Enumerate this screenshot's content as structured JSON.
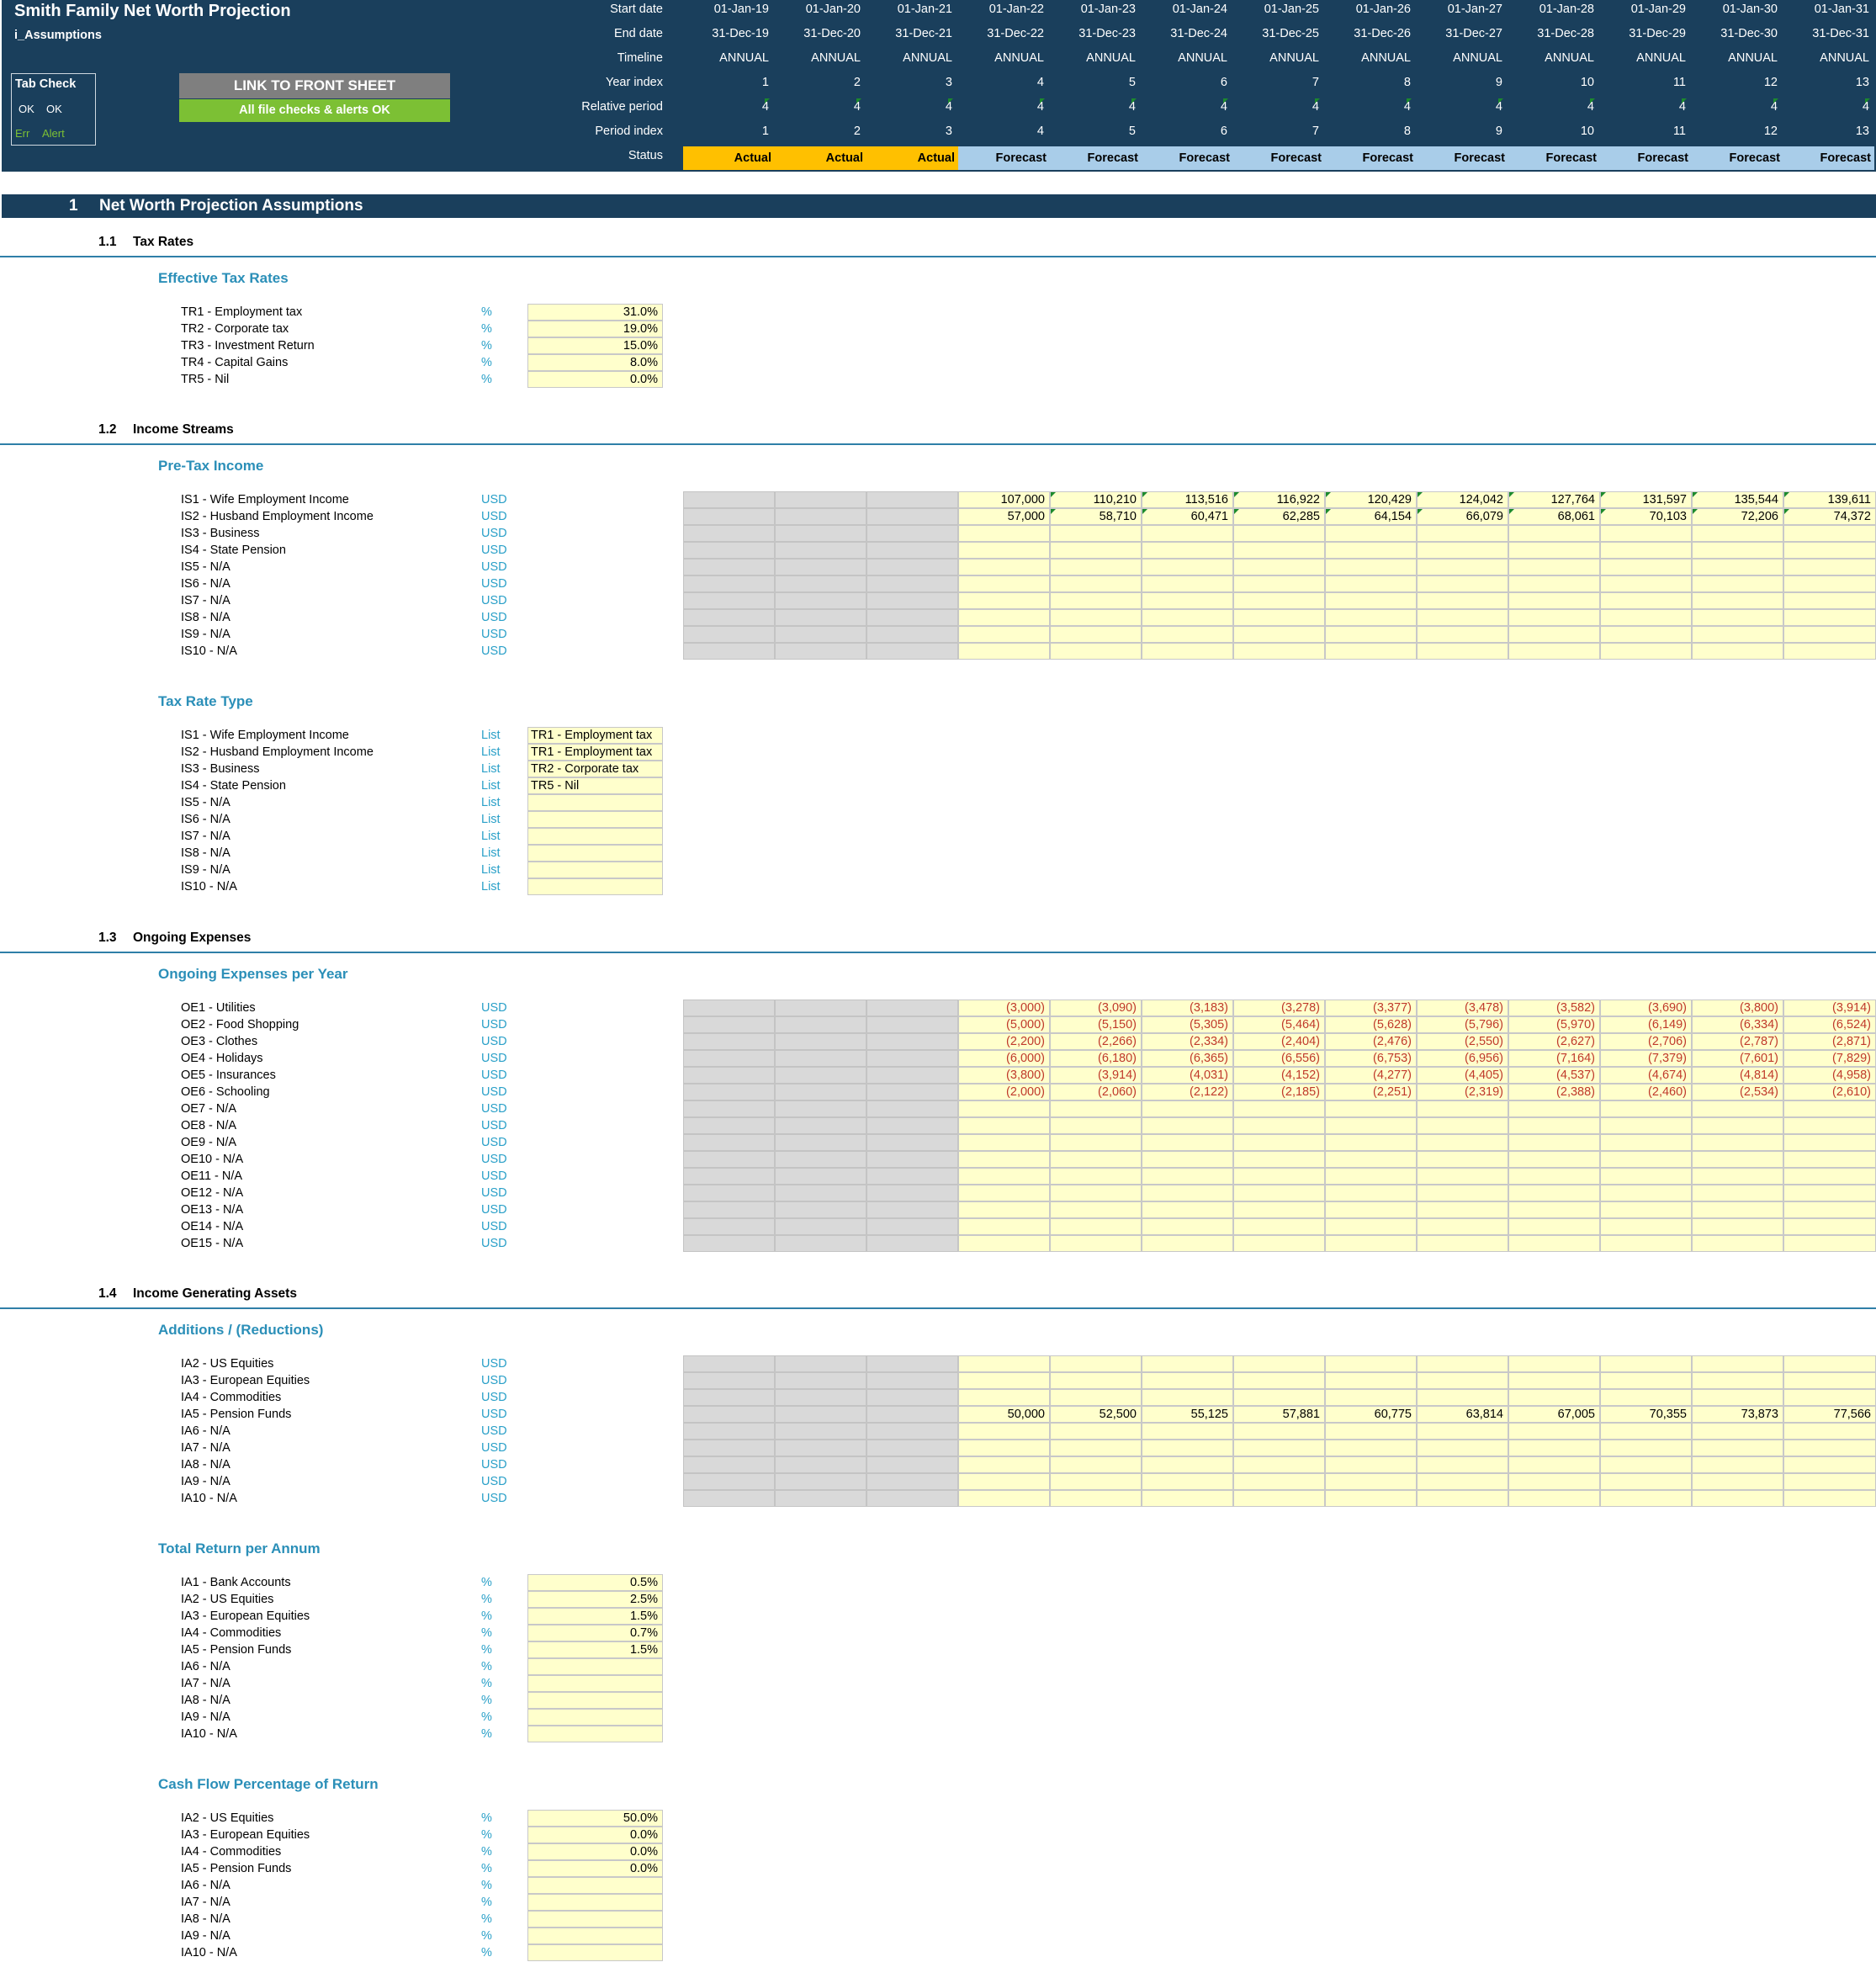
{
  "header": {
    "title": "Smith Family Net Worth Projection",
    "sheet_name": "i_Assumptions",
    "tab_check": {
      "title": "Tab Check",
      "ok1": "OK",
      "ok2": "OK",
      "err": "Err",
      "alert": "Alert"
    },
    "link_button": "LINK TO FRONT SHEET",
    "checks_status": "All file checks & alerts OK",
    "row_labels": {
      "start_date": "Start date",
      "end_date": "End date",
      "timeline": "Timeline",
      "year_index": "Year index",
      "relative_period": "Relative period",
      "period_index": "Period index",
      "status": "Status"
    },
    "start_dates": [
      "01-Jan-19",
      "01-Jan-20",
      "01-Jan-21",
      "01-Jan-22",
      "01-Jan-23",
      "01-Jan-24",
      "01-Jan-25",
      "01-Jan-26",
      "01-Jan-27",
      "01-Jan-28",
      "01-Jan-29",
      "01-Jan-30",
      "01-Jan-31"
    ],
    "end_dates": [
      "31-Dec-19",
      "31-Dec-20",
      "31-Dec-21",
      "31-Dec-22",
      "31-Dec-23",
      "31-Dec-24",
      "31-Dec-25",
      "31-Dec-26",
      "31-Dec-27",
      "31-Dec-28",
      "31-Dec-29",
      "31-Dec-30",
      "31-Dec-31"
    ],
    "timeline": [
      "ANNUAL",
      "ANNUAL",
      "ANNUAL",
      "ANNUAL",
      "ANNUAL",
      "ANNUAL",
      "ANNUAL",
      "ANNUAL",
      "ANNUAL",
      "ANNUAL",
      "ANNUAL",
      "ANNUAL",
      "ANNUAL"
    ],
    "year_index": [
      "1",
      "2",
      "3",
      "4",
      "5",
      "6",
      "7",
      "8",
      "9",
      "10",
      "11",
      "12",
      "13"
    ],
    "relative_period": [
      "4",
      "4",
      "4",
      "4",
      "4",
      "4",
      "4",
      "4",
      "4",
      "4",
      "4",
      "4",
      "4"
    ],
    "period_index": [
      "1",
      "2",
      "3",
      "4",
      "5",
      "6",
      "7",
      "8",
      "9",
      "10",
      "11",
      "12",
      "13"
    ],
    "status": [
      "Actual",
      "Actual",
      "Actual",
      "Forecast",
      "Forecast",
      "Forecast",
      "Forecast",
      "Forecast",
      "Forecast",
      "Forecast",
      "Forecast",
      "Forecast",
      "Forecast"
    ],
    "colors": {
      "panel": "#1a3f5c",
      "actual": "#ffc000",
      "forecast": "#a9cde9",
      "button_grey": "#7f7f7f",
      "button_green": "#7cc034"
    }
  },
  "section": {
    "number": "1",
    "title": "Net Worth Projection Assumptions"
  },
  "tax_rates": {
    "number": "1.1",
    "title": "Tax Rates",
    "subtitle": "Effective Tax Rates",
    "rows": [
      {
        "label": "TR1 - Employment tax",
        "unit": "%",
        "value": "31.0%"
      },
      {
        "label": "TR2 - Corporate tax",
        "unit": "%",
        "value": "19.0%"
      },
      {
        "label": "TR3 - Investment Return",
        "unit": "%",
        "value": "15.0%"
      },
      {
        "label": "TR4 - Capital Gains",
        "unit": "%",
        "value": "8.0%"
      },
      {
        "label": "TR5 - Nil",
        "unit": "%",
        "value": "0.0%"
      }
    ]
  },
  "income_streams": {
    "number": "1.2",
    "title": "Income Streams",
    "subtitle": "Pre-Tax Income",
    "rows": [
      {
        "label": "IS1 - Wife Employment Income",
        "unit": "USD",
        "values": [
          "107,000",
          "110,210",
          "113,516",
          "116,922",
          "120,429",
          "124,042",
          "127,764",
          "131,597",
          "135,544",
          "139,611"
        ]
      },
      {
        "label": "IS2 - Husband Employment Income",
        "unit": "USD",
        "values": [
          "57,000",
          "58,710",
          "60,471",
          "62,285",
          "64,154",
          "66,079",
          "68,061",
          "70,103",
          "72,206",
          "74,372"
        ]
      },
      {
        "label": "IS3 - Business",
        "unit": "USD",
        "values": []
      },
      {
        "label": "IS4 - State Pension",
        "unit": "USD",
        "values": []
      },
      {
        "label": "IS5 - N/A",
        "unit": "USD",
        "values": []
      },
      {
        "label": "IS6 - N/A",
        "unit": "USD",
        "values": []
      },
      {
        "label": "IS7 - N/A",
        "unit": "USD",
        "values": []
      },
      {
        "label": "IS8 - N/A",
        "unit": "USD",
        "values": []
      },
      {
        "label": "IS9 - N/A",
        "unit": "USD",
        "values": []
      },
      {
        "label": "IS10 - N/A",
        "unit": "USD",
        "values": []
      }
    ],
    "tax_rate_type": {
      "subtitle": "Tax Rate Type",
      "rows": [
        {
          "label": "IS1 - Wife Employment Income",
          "unit": "List",
          "value": "TR1 - Employment tax"
        },
        {
          "label": "IS2 - Husband Employment Income",
          "unit": "List",
          "value": "TR1 - Employment tax"
        },
        {
          "label": "IS3 - Business",
          "unit": "List",
          "value": "TR2 - Corporate tax"
        },
        {
          "label": "IS4 - State Pension",
          "unit": "List",
          "value": "TR5 - Nil"
        },
        {
          "label": "IS5 - N/A",
          "unit": "List",
          "value": ""
        },
        {
          "label": "IS6 - N/A",
          "unit": "List",
          "value": ""
        },
        {
          "label": "IS7 - N/A",
          "unit": "List",
          "value": ""
        },
        {
          "label": "IS8 - N/A",
          "unit": "List",
          "value": ""
        },
        {
          "label": "IS9 - N/A",
          "unit": "List",
          "value": ""
        },
        {
          "label": "IS10 - N/A",
          "unit": "List",
          "value": ""
        }
      ]
    }
  },
  "ongoing_expenses": {
    "number": "1.3",
    "title": "Ongoing Expenses",
    "subtitle": "Ongoing Expenses per Year",
    "rows": [
      {
        "label": "OE1 - Utilities",
        "unit": "USD",
        "values": [
          "(3,000)",
          "(3,090)",
          "(3,183)",
          "(3,278)",
          "(3,377)",
          "(3,478)",
          "(3,582)",
          "(3,690)",
          "(3,800)",
          "(3,914)"
        ]
      },
      {
        "label": "OE2 - Food Shopping",
        "unit": "USD",
        "values": [
          "(5,000)",
          "(5,150)",
          "(5,305)",
          "(5,464)",
          "(5,628)",
          "(5,796)",
          "(5,970)",
          "(6,149)",
          "(6,334)",
          "(6,524)"
        ]
      },
      {
        "label": "OE3 - Clothes",
        "unit": "USD",
        "values": [
          "(2,200)",
          "(2,266)",
          "(2,334)",
          "(2,404)",
          "(2,476)",
          "(2,550)",
          "(2,627)",
          "(2,706)",
          "(2,787)",
          "(2,871)"
        ]
      },
      {
        "label": "OE4 - Holidays",
        "unit": "USD",
        "values": [
          "(6,000)",
          "(6,180)",
          "(6,365)",
          "(6,556)",
          "(6,753)",
          "(6,956)",
          "(7,164)",
          "(7,379)",
          "(7,601)",
          "(7,829)"
        ]
      },
      {
        "label": "OE5 - Insurances",
        "unit": "USD",
        "values": [
          "(3,800)",
          "(3,914)",
          "(4,031)",
          "(4,152)",
          "(4,277)",
          "(4,405)",
          "(4,537)",
          "(4,674)",
          "(4,814)",
          "(4,958)"
        ]
      },
      {
        "label": "OE6 - Schooling",
        "unit": "USD",
        "values": [
          "(2,000)",
          "(2,060)",
          "(2,122)",
          "(2,185)",
          "(2,251)",
          "(2,319)",
          "(2,388)",
          "(2,460)",
          "(2,534)",
          "(2,610)"
        ]
      },
      {
        "label": "OE7 - N/A",
        "unit": "USD",
        "values": []
      },
      {
        "label": "OE8 - N/A",
        "unit": "USD",
        "values": []
      },
      {
        "label": "OE9 - N/A",
        "unit": "USD",
        "values": []
      },
      {
        "label": "OE10 - N/A",
        "unit": "USD",
        "values": []
      },
      {
        "label": "OE11 - N/A",
        "unit": "USD",
        "values": []
      },
      {
        "label": "OE12 - N/A",
        "unit": "USD",
        "values": []
      },
      {
        "label": "OE13 - N/A",
        "unit": "USD",
        "values": []
      },
      {
        "label": "OE14 - N/A",
        "unit": "USD",
        "values": []
      },
      {
        "label": "OE15 - N/A",
        "unit": "USD",
        "values": []
      }
    ]
  },
  "income_assets": {
    "number": "1.4",
    "title": "Income Generating Assets",
    "additions": {
      "subtitle": "Additions / (Reductions)",
      "rows": [
        {
          "label": "IA2 - US Equities",
          "unit": "USD",
          "values": []
        },
        {
          "label": "IA3 - European Equities",
          "unit": "USD",
          "values": []
        },
        {
          "label": "IA4 - Commodities",
          "unit": "USD",
          "values": []
        },
        {
          "label": "IA5 - Pension Funds",
          "unit": "USD",
          "values": [
            "50,000",
            "52,500",
            "55,125",
            "57,881",
            "60,775",
            "63,814",
            "67,005",
            "70,355",
            "73,873",
            "77,566"
          ]
        },
        {
          "label": "IA6 - N/A",
          "unit": "USD",
          "values": []
        },
        {
          "label": "IA7 - N/A",
          "unit": "USD",
          "values": []
        },
        {
          "label": "IA8 - N/A",
          "unit": "USD",
          "values": []
        },
        {
          "label": "IA9 - N/A",
          "unit": "USD",
          "values": []
        },
        {
          "label": "IA10 - N/A",
          "unit": "USD",
          "values": []
        }
      ]
    },
    "total_return": {
      "subtitle": "Total Return per Annum",
      "rows": [
        {
          "label": "IA1 - Bank Accounts",
          "unit": "%",
          "value": "0.5%"
        },
        {
          "label": "IA2 - US Equities",
          "unit": "%",
          "value": "2.5%"
        },
        {
          "label": "IA3 - European Equities",
          "unit": "%",
          "value": "1.5%"
        },
        {
          "label": "IA4 - Commodities",
          "unit": "%",
          "value": "0.7%"
        },
        {
          "label": "IA5 - Pension Funds",
          "unit": "%",
          "value": "1.5%"
        },
        {
          "label": "IA6 - N/A",
          "unit": "%",
          "value": ""
        },
        {
          "label": "IA7 - N/A",
          "unit": "%",
          "value": ""
        },
        {
          "label": "IA8 - N/A",
          "unit": "%",
          "value": ""
        },
        {
          "label": "IA9 - N/A",
          "unit": "%",
          "value": ""
        },
        {
          "label": "IA10 - N/A",
          "unit": "%",
          "value": ""
        }
      ]
    },
    "cash_flow": {
      "subtitle": "Cash Flow Percentage of Return",
      "rows": [
        {
          "label": "IA2 - US Equities",
          "unit": "%",
          "value": "50.0%"
        },
        {
          "label": "IA3 - European Equities",
          "unit": "%",
          "value": "0.0%"
        },
        {
          "label": "IA4 - Commodities",
          "unit": "%",
          "value": "0.0%"
        },
        {
          "label": "IA5 - Pension Funds",
          "unit": "%",
          "value": "0.0%"
        },
        {
          "label": "IA6 - N/A",
          "unit": "%",
          "value": ""
        },
        {
          "label": "IA7 - N/A",
          "unit": "%",
          "value": ""
        },
        {
          "label": "IA8 - N/A",
          "unit": "%",
          "value": ""
        },
        {
          "label": "IA9 - N/A",
          "unit": "%",
          "value": ""
        },
        {
          "label": "IA10 - N/A",
          "unit": "%",
          "value": ""
        }
      ]
    }
  }
}
